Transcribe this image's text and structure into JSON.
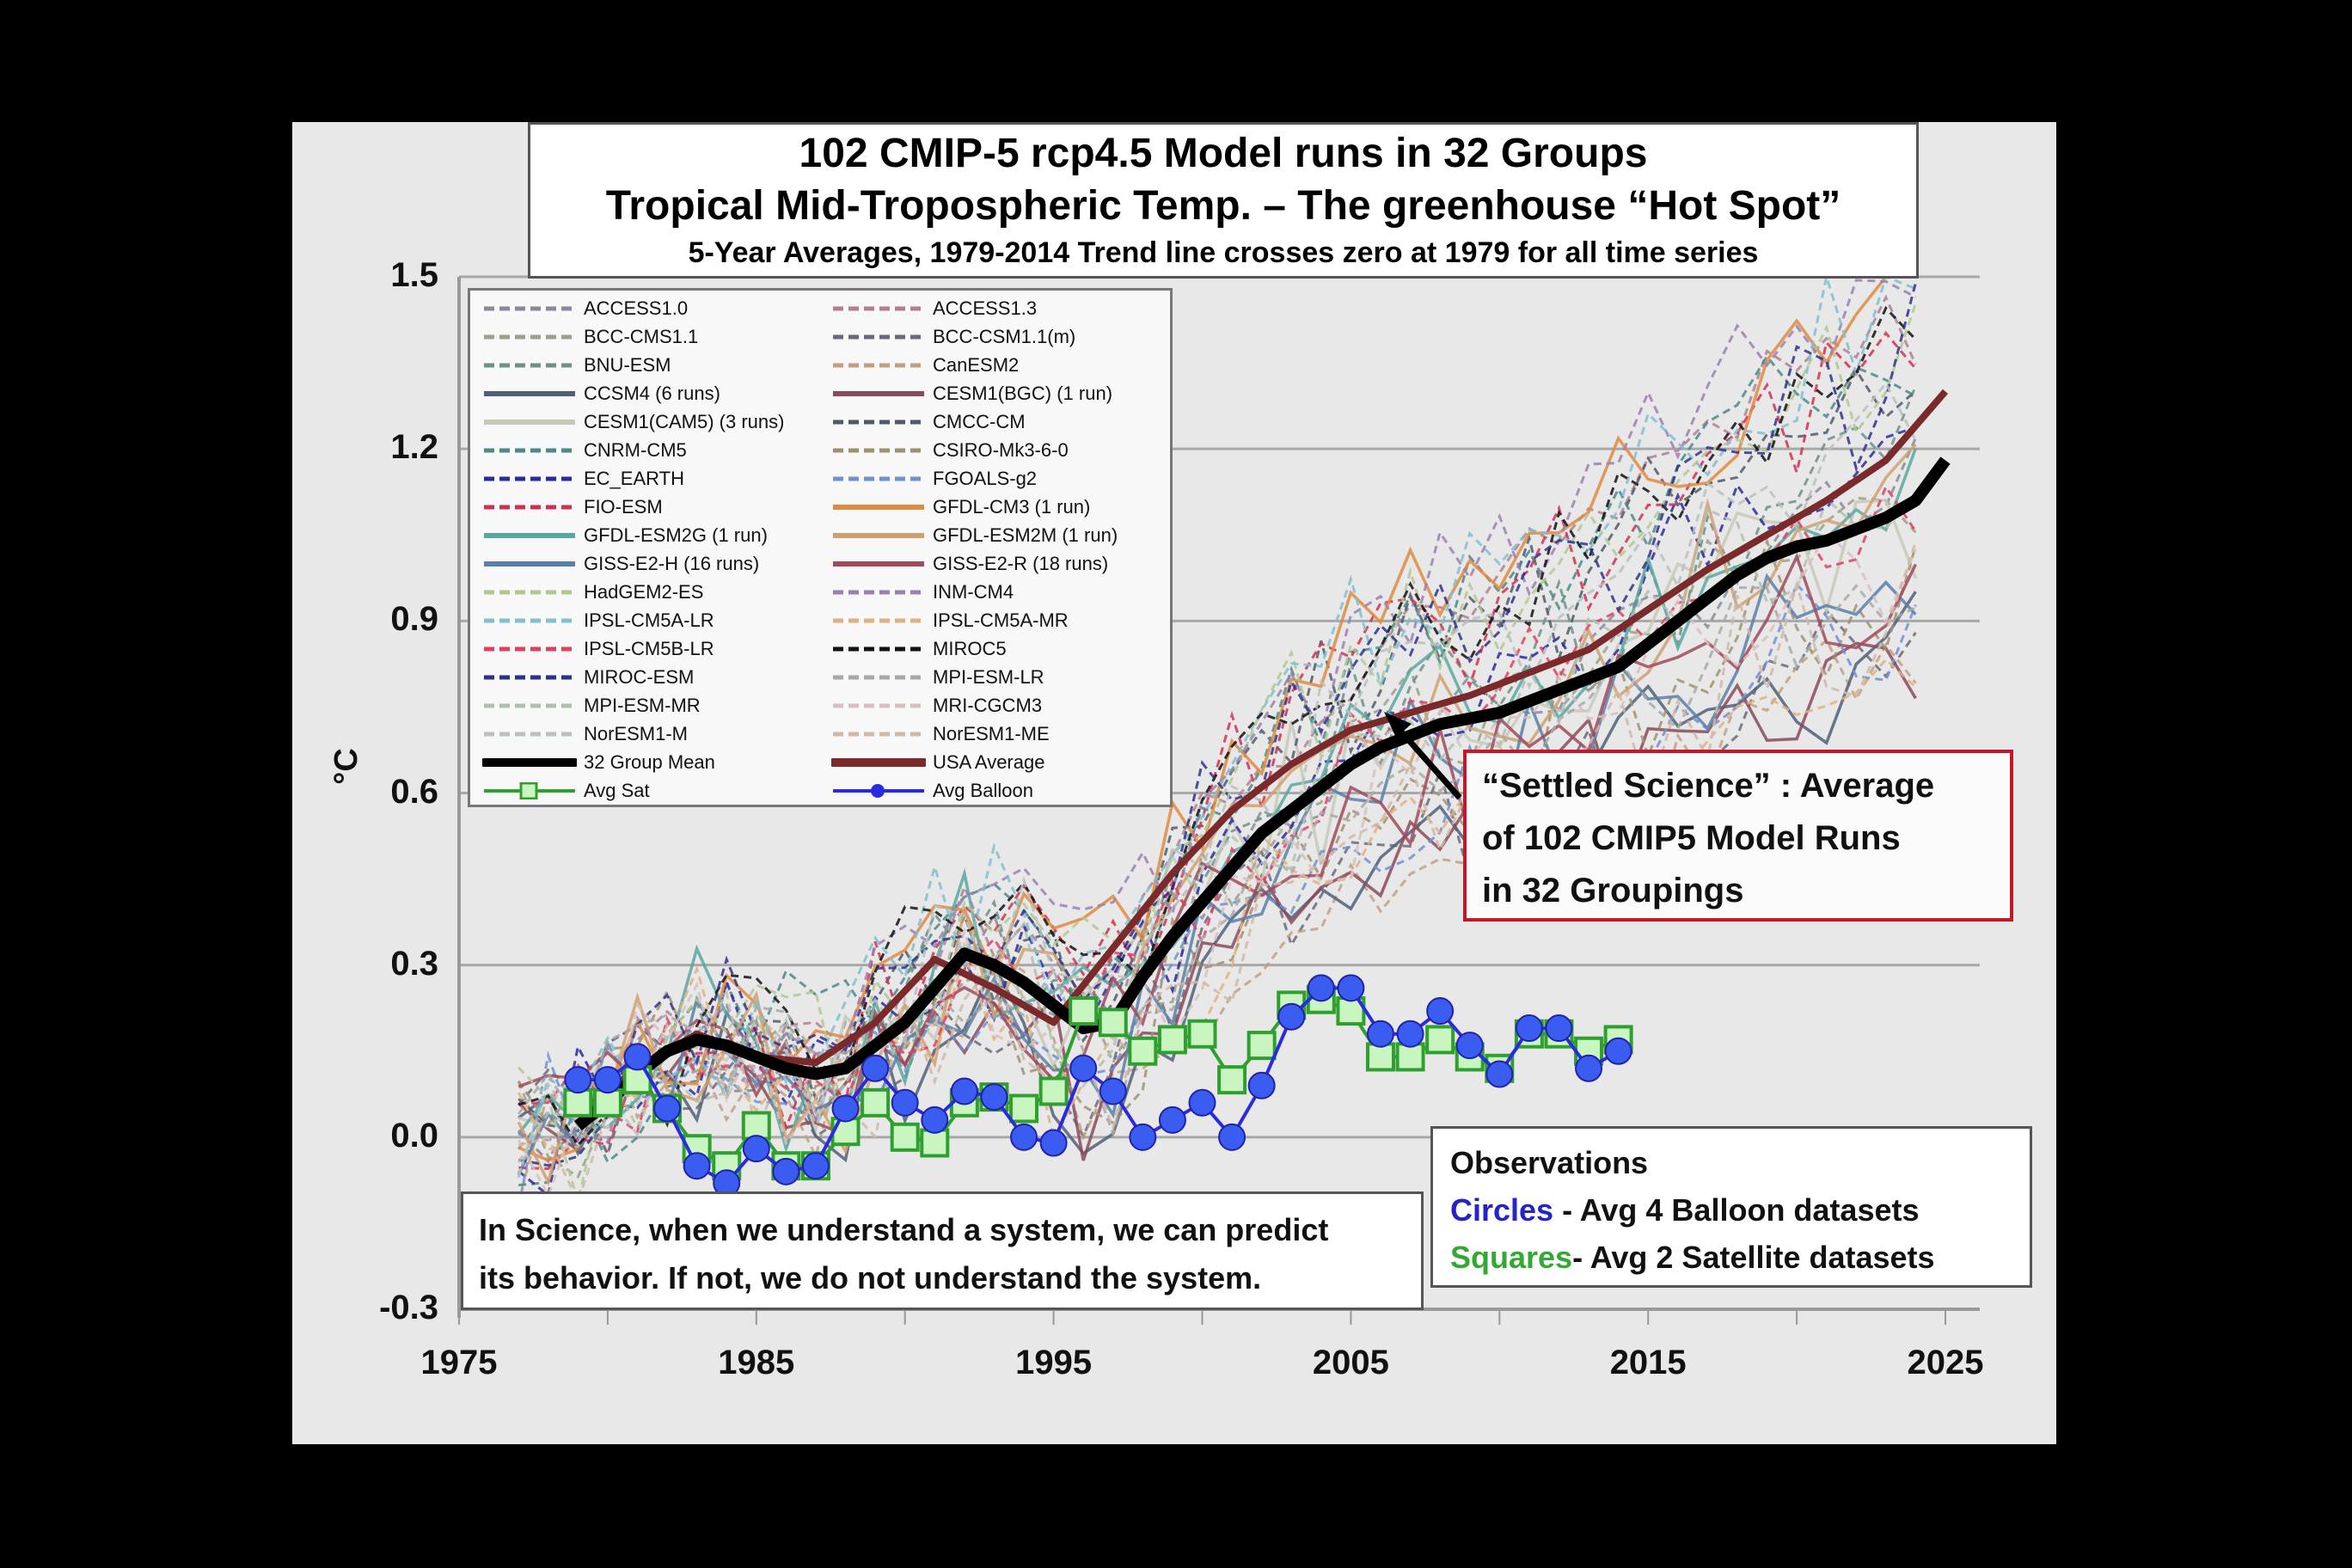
{
  "title": {
    "line1": "102 CMIP-5 rcp4.5 Model runs in 32 Groups",
    "line2": "Tropical Mid-Tropospheric Temp. – The greenhouse “Hot Spot”",
    "line3": "5-Year Averages, 1979-2014 Trend line crosses zero at 1979 for all time series"
  },
  "legend": {
    "items": [
      {
        "label": "ACCESS1.0",
        "color": "#8a8a9a",
        "style": "dashed"
      },
      {
        "label": "ACCESS1.3",
        "color": "#b08090",
        "style": "dashed"
      },
      {
        "label": "BCC-CMS1.1",
        "color": "#9aa08a",
        "style": "dashed"
      },
      {
        "label": "BCC-CSM1.1(m)",
        "color": "#6a6a7a",
        "style": "dashed"
      },
      {
        "label": "BNU-ESM",
        "color": "#6f8f8a",
        "style": "dashed"
      },
      {
        "label": "CanESM2",
        "color": "#c0a080",
        "style": "dashed"
      },
      {
        "label": "CCSM4 (6 runs)",
        "color": "#50607a",
        "style": "solid"
      },
      {
        "label": "CESM1(BGC) (1 run)",
        "color": "#8a4a5a",
        "style": "solid"
      },
      {
        "label": "CESM1(CAM5) (3 runs)",
        "color": "#c8c8b8",
        "style": "solid"
      },
      {
        "label": "CMCC-CM",
        "color": "#505a6a",
        "style": "dashed"
      },
      {
        "label": "CNRM-CM5",
        "color": "#4a8a8a",
        "style": "dashed"
      },
      {
        "label": "CSIRO-Mk3-6-0",
        "color": "#a09070",
        "style": "dashed"
      },
      {
        "label": "EC_EARTH",
        "color": "#2a2aa0",
        "style": "dashed"
      },
      {
        "label": "FGOALS-g2",
        "color": "#7090d0",
        "style": "dashed"
      },
      {
        "label": "FIO-ESM",
        "color": "#d03050",
        "style": "dashed"
      },
      {
        "label": "GFDL-CM3 (1 run)",
        "color": "#e08a40",
        "style": "solid"
      },
      {
        "label": "GFDL-ESM2G (1 run)",
        "color": "#5aa8a0",
        "style": "solid"
      },
      {
        "label": "GFDL-ESM2M (1 run)",
        "color": "#d0a070",
        "style": "solid"
      },
      {
        "label": "GISS-E2-H (16 runs)",
        "color": "#5a80a8",
        "style": "solid"
      },
      {
        "label": "GISS-E2-R (18 runs)",
        "color": "#a04a5a",
        "style": "solid"
      },
      {
        "label": "HadGEM2-ES",
        "color": "#b0c890",
        "style": "dashed"
      },
      {
        "label": "INM-CM4",
        "color": "#9a80b0",
        "style": "dashed"
      },
      {
        "label": "IPSL-CM5A-LR",
        "color": "#80c0d0",
        "style": "dashed"
      },
      {
        "label": "IPSL-CM5A-MR",
        "color": "#e0b080",
        "style": "dashed"
      },
      {
        "label": "IPSL-CM5B-LR",
        "color": "#e04060",
        "style": "dashed"
      },
      {
        "label": "MIROC5",
        "color": "#111111",
        "style": "dashed"
      },
      {
        "label": "MIROC-ESM",
        "color": "#30308a",
        "style": "dashed"
      },
      {
        "label": "MPI-ESM-LR",
        "color": "#a8a8a8",
        "style": "dashed"
      },
      {
        "label": "MPI-ESM-MR",
        "color": "#b0c0b0",
        "style": "dashed"
      },
      {
        "label": "MRI-CGCM3",
        "color": "#d8c0c0",
        "style": "dashed"
      },
      {
        "label": "NorESM1-M",
        "color": "#b8c0c0",
        "style": "dashed"
      },
      {
        "label": "NorESM1-ME",
        "color": "#d0b8a8",
        "style": "dashed"
      },
      {
        "label": "32 Group Mean",
        "color": "#000000",
        "style": "thick"
      },
      {
        "label": "USA Average",
        "color": "#7a2a2a",
        "style": "thick"
      },
      {
        "label": "Avg Sat",
        "color": "#2fa02f",
        "style": "square"
      },
      {
        "label": "Avg Balloon",
        "color": "#2a2ae0",
        "style": "circle"
      }
    ]
  },
  "annotation": {
    "line1": "“Settled Science” : Average",
    "line2": "of 102 CMIP5 Model Runs",
    "line3": "in 32 Groupings",
    "border_color": "#c01a2a"
  },
  "observations_box": {
    "heading": "Observations",
    "circles_word": "Circles",
    "circles_text": " - Avg 4 Balloon  datasets",
    "squares_word": "Squares",
    "squares_text": "- Avg 2 Satellite datasets"
  },
  "science_box": {
    "line1": "In Science, when we understand  a system, we can predict",
    "line2": "its behavior.  If not, we do not understand  the system."
  },
  "chart_data": {
    "type": "line",
    "title": "102 CMIP-5 rcp4.5 Model runs in 32 Groups — Tropical Mid-Tropospheric Temp.",
    "xlabel": "",
    "ylabel": "°C",
    "xlim": [
      1975,
      2025
    ],
    "ylim": [
      -0.3,
      1.5
    ],
    "xticks": [
      "1975",
      "1985",
      "1995",
      "2005",
      "2015",
      "2025"
    ],
    "yticks": [
      "1.5",
      "1.2",
      "0.9",
      "0.6",
      "0.3",
      "0.0",
      "-0.3"
    ],
    "grid": true,
    "legend_position": "top-left",
    "series": [
      {
        "name": "32 Group Mean",
        "color": "#000000",
        "x": [
          1979,
          1980,
          1981,
          1982,
          1983,
          1984,
          1985,
          1986,
          1987,
          1988,
          1989,
          1990,
          1991,
          1992,
          1993,
          1994,
          1995,
          1996,
          1997,
          1998,
          1999,
          2000,
          2001,
          2002,
          2003,
          2004,
          2005,
          2006,
          2007,
          2008,
          2009,
          2010,
          2011,
          2012,
          2013,
          2014,
          2015,
          2016,
          2017,
          2018,
          2019,
          2020,
          2021,
          2022,
          2023,
          2024,
          2025
        ],
        "values": [
          0.02,
          0.06,
          0.11,
          0.15,
          0.17,
          0.16,
          0.14,
          0.12,
          0.11,
          0.12,
          0.16,
          0.2,
          0.26,
          0.32,
          0.3,
          0.27,
          0.23,
          0.19,
          0.2,
          0.28,
          0.35,
          0.41,
          0.47,
          0.53,
          0.57,
          0.61,
          0.65,
          0.68,
          0.7,
          0.72,
          0.73,
          0.74,
          0.76,
          0.78,
          0.8,
          0.82,
          0.86,
          0.9,
          0.94,
          0.98,
          1.01,
          1.03,
          1.04,
          1.06,
          1.08,
          1.11,
          1.18
        ]
      },
      {
        "name": "USA Average",
        "color": "#7a2a2a",
        "x": [
          1979,
          1981,
          1983,
          1985,
          1987,
          1989,
          1991,
          1993,
          1995,
          1997,
          1999,
          2001,
          2003,
          2005,
          2007,
          2009,
          2011,
          2013,
          2015,
          2017,
          2019,
          2021,
          2023,
          2025
        ],
        "values": [
          0.04,
          0.12,
          0.18,
          0.14,
          0.13,
          0.2,
          0.31,
          0.26,
          0.2,
          0.33,
          0.46,
          0.57,
          0.65,
          0.71,
          0.74,
          0.77,
          0.81,
          0.85,
          0.92,
          0.99,
          1.05,
          1.11,
          1.18,
          1.3
        ]
      },
      {
        "name": "Avg Balloon",
        "color": "#2a2ae0",
        "marker": "circle",
        "x": [
          1979,
          1980,
          1981,
          1982,
          1983,
          1984,
          1985,
          1986,
          1987,
          1988,
          1989,
          1990,
          1991,
          1992,
          1993,
          1994,
          1995,
          1996,
          1997,
          1998,
          1999,
          2000,
          2001,
          2002,
          2003,
          2004,
          2005,
          2006,
          2007,
          2008,
          2009,
          2010,
          2011,
          2012,
          2013,
          2014
        ],
        "values": [
          0.1,
          0.1,
          0.14,
          0.05,
          -0.05,
          -0.08,
          -0.02,
          -0.06,
          -0.05,
          0.05,
          0.12,
          0.06,
          0.03,
          0.08,
          0.07,
          0.0,
          -0.01,
          0.12,
          0.08,
          0.0,
          0.03,
          0.06,
          0.0,
          0.09,
          0.21,
          0.26,
          0.26,
          0.18,
          0.18,
          0.22,
          0.16,
          0.11,
          0.19,
          0.19,
          0.12,
          0.15
        ]
      },
      {
        "name": "Avg Sat",
        "color": "#2fa02f",
        "marker": "square",
        "x": [
          1979,
          1980,
          1981,
          1982,
          1983,
          1984,
          1985,
          1986,
          1987,
          1988,
          1989,
          1990,
          1991,
          1992,
          1993,
          1994,
          1995,
          1996,
          1997,
          1998,
          1999,
          2000,
          2001,
          2002,
          2003,
          2004,
          2005,
          2006,
          2007,
          2008,
          2009,
          2010,
          2011,
          2012,
          2013,
          2014
        ],
        "values": [
          0.06,
          0.06,
          0.1,
          0.05,
          -0.02,
          -0.05,
          0.02,
          -0.05,
          -0.05,
          0.01,
          0.06,
          0.0,
          -0.01,
          0.06,
          0.07,
          0.05,
          0.08,
          0.22,
          0.2,
          0.15,
          0.17,
          0.18,
          0.1,
          0.16,
          0.23,
          0.24,
          0.22,
          0.14,
          0.14,
          0.17,
          0.14,
          0.12,
          0.18,
          0.18,
          0.15,
          0.17
        ]
      }
    ],
    "model_envelope": {
      "description": "32 individual model group series (dashed/solid thin lines) fanning from ~0.0–0.3 around 1979 to ~0.8–1.5 by 2024",
      "range_1979": [
        -0.1,
        0.3
      ],
      "range_1995": [
        0.1,
        0.45
      ],
      "range_2010": [
        0.45,
        1.3
      ],
      "range_2024": [
        0.8,
        1.5
      ]
    }
  }
}
